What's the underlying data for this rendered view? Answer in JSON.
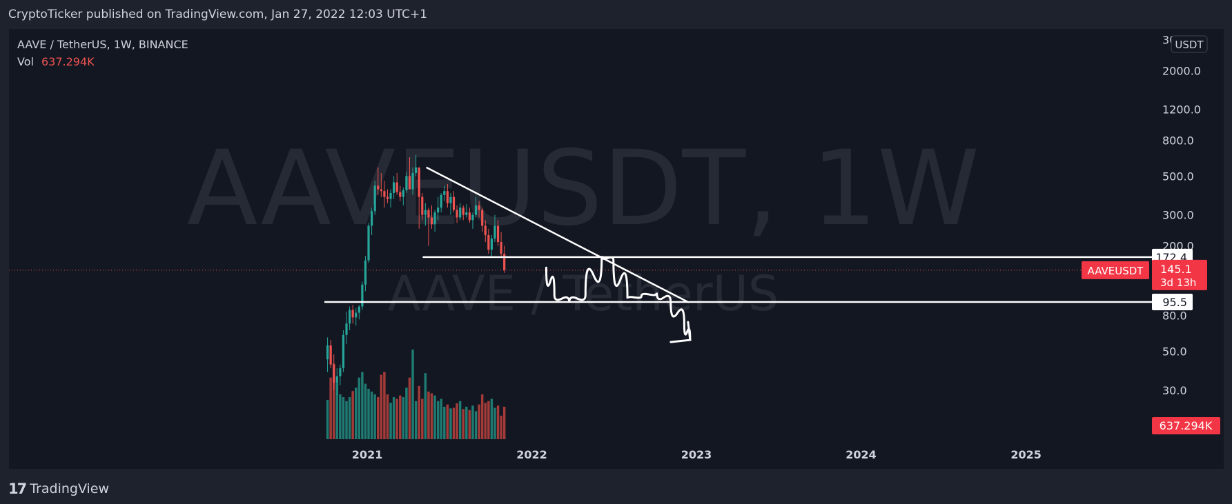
{
  "header": {
    "published_by": "CryptoTicker published on TradingView.com, Jan 27, 2022 12:03 UTC+1"
  },
  "footer": {
    "brand": "TradingView",
    "logo_icon": "tradingview-logo-icon"
  },
  "colors": {
    "background": "#131722",
    "frame": "#1e222d",
    "bull": "#26a69a",
    "bear": "#ef5350",
    "volume_bull": "#1f7a72",
    "volume_bear": "#a33b39",
    "drawing": "#ffffff",
    "price_label": "#f23645"
  },
  "chart_data": {
    "type": "candlestick",
    "symbol_line": "AAVE / TetherUS, 1W, BINANCE",
    "volume_label": "Vol",
    "volume_value": "637.294K",
    "watermark": "AAVEUSDT, 1W",
    "watermark_sub": "AAVE / TetherUS",
    "currency": "USDT",
    "y_scale": "log",
    "y_range": [
      14,
      3300
    ],
    "y_ticks": [
      "3000.0",
      "2000.0",
      "1200.0",
      "800.0",
      "500.0",
      "300.0",
      "200.0",
      "80.0",
      "50.0",
      "30.0"
    ],
    "y_tick_values": [
      3000,
      2000,
      1200,
      800,
      500,
      300,
      200,
      80,
      50,
      30
    ],
    "x_range": [
      "2020-09-28",
      "2025-10-01"
    ],
    "x_ticks": [
      "2021",
      "2022",
      "2023",
      "2024",
      "2025"
    ],
    "x_tick_dates": [
      "2021-01-01",
      "2022-01-01",
      "2023-01-01",
      "2024-01-01",
      "2025-01-01"
    ],
    "price_labels": [
      {
        "text": "172.4",
        "value": 172.4,
        "style": "white"
      },
      {
        "text": "95.5",
        "value": 95.5,
        "style": "white"
      }
    ],
    "last_price": {
      "symbol": "AAVEUSDT",
      "price": "145.1",
      "countdown": "3d 13h",
      "value": 145.1
    },
    "volume_last_label": "637.294K",
    "ohlc_weekly": [
      [
        45,
        60,
        38,
        54
      ],
      [
        54,
        58,
        40,
        42
      ],
      [
        42,
        48,
        30,
        33
      ],
      [
        33,
        40,
        28,
        36
      ],
      [
        36,
        42,
        32,
        40
      ],
      [
        40,
        66,
        38,
        62
      ],
      [
        62,
        84,
        55,
        72
      ],
      [
        72,
        90,
        66,
        86
      ],
      [
        86,
        92,
        72,
        78
      ],
      [
        78,
        88,
        70,
        83
      ],
      [
        83,
        92,
        76,
        90
      ],
      [
        90,
        125,
        86,
        120
      ],
      [
        120,
        175,
        110,
        165
      ],
      [
        165,
        270,
        160,
        260
      ],
      [
        260,
        330,
        230,
        315
      ],
      [
        315,
        470,
        300,
        440
      ],
      [
        440,
        560,
        390,
        420
      ],
      [
        420,
        520,
        380,
        410
      ],
      [
        410,
        470,
        330,
        380
      ],
      [
        380,
        420,
        350,
        370
      ],
      [
        370,
        420,
        330,
        400
      ],
      [
        400,
        500,
        370,
        460
      ],
      [
        460,
        520,
        390,
        405
      ],
      [
        405,
        440,
        360,
        380
      ],
      [
        380,
        430,
        340,
        415
      ],
      [
        415,
        530,
        400,
        500
      ],
      [
        500,
        640,
        460,
        420
      ],
      [
        420,
        560,
        390,
        520
      ],
      [
        520,
        660,
        500,
        560
      ],
      [
        560,
        540,
        250,
        380
      ],
      [
        380,
        400,
        280,
        300
      ],
      [
        300,
        350,
        260,
        320
      ],
      [
        320,
        330,
        200,
        290
      ],
      [
        290,
        340,
        250,
        265
      ],
      [
        265,
        320,
        240,
        310
      ],
      [
        310,
        380,
        280,
        330
      ],
      [
        330,
        400,
        310,
        390
      ],
      [
        390,
        440,
        360,
        410
      ],
      [
        410,
        450,
        330,
        350
      ],
      [
        350,
        400,
        300,
        380
      ],
      [
        380,
        410,
        310,
        320
      ],
      [
        320,
        340,
        270,
        290
      ],
      [
        290,
        350,
        280,
        330
      ],
      [
        330,
        340,
        280,
        300
      ],
      [
        300,
        345,
        290,
        310
      ],
      [
        310,
        330,
        270,
        280
      ],
      [
        280,
        310,
        250,
        300
      ],
      [
        300,
        380,
        290,
        340
      ],
      [
        340,
        360,
        290,
        320
      ],
      [
        320,
        330,
        240,
        260
      ],
      [
        260,
        280,
        210,
        230
      ],
      [
        230,
        250,
        180,
        190
      ],
      [
        190,
        230,
        170,
        220
      ],
      [
        220,
        300,
        210,
        260
      ],
      [
        260,
        280,
        200,
        210
      ],
      [
        210,
        240,
        170,
        180
      ],
      [
        180,
        200,
        140,
        145.1
      ]
    ],
    "volume_weekly": [
      70,
      110,
      135,
      100,
      80,
      75,
      68,
      75,
      86,
      92,
      110,
      120,
      99,
      90,
      85,
      80,
      75,
      115,
      120,
      80,
      65,
      75,
      72,
      78,
      75,
      92,
      110,
      160,
      68,
      95,
      72,
      118,
      85,
      82,
      78,
      68,
      72,
      58,
      62,
      55,
      56,
      64,
      68,
      54,
      58,
      52,
      60,
      50,
      62,
      80,
      65,
      68,
      72,
      56,
      60,
      42,
      58
    ],
    "drawings": {
      "descending_trendline": {
        "start": [
          "2021-05-12",
          560
        ],
        "end": [
          "2022-12-15",
          95
        ]
      },
      "resistance_line": {
        "value": 172.4,
        "from": "2021-05-04"
      },
      "support_line": {
        "value": 95.5,
        "from": "2020-09-28"
      },
      "projection_path": [
        [
          "2022-02-02",
          150
        ],
        [
          "2022-02-20",
          105
        ],
        [
          "2022-03-25",
          95
        ],
        [
          "2022-04-30",
          105
        ],
        [
          "2022-06-05",
          175
        ],
        [
          "2022-07-01",
          165
        ],
        [
          "2022-08-01",
          100
        ],
        [
          "2022-09-01",
          103
        ],
        [
          "2022-10-05",
          108
        ],
        [
          "2022-11-05",
          95
        ],
        [
          "2022-12-05",
          72
        ],
        [
          "2022-12-18",
          58
        ]
      ]
    }
  }
}
